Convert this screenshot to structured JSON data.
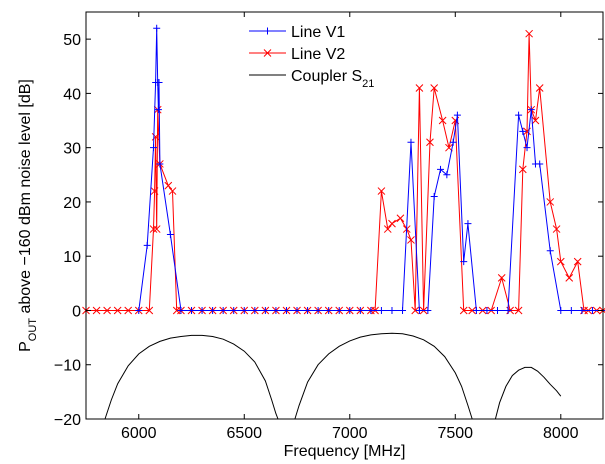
{
  "chart_data": {
    "type": "line",
    "xlabel": "Frequency [MHz]",
    "ylabel_prefix": "P",
    "ylabel_sub": "OUT",
    "ylabel_rest": " above −160 dBm noise level [dB]",
    "xlim": [
      5750,
      8200
    ],
    "ylim": [
      -20,
      55
    ],
    "xticks": [
      6000,
      6500,
      7000,
      7500,
      8000
    ],
    "yticks": [
      -20,
      -10,
      0,
      10,
      20,
      30,
      40,
      50
    ],
    "xtick_labels": [
      "6000",
      "6500",
      "7000",
      "7500",
      "8000"
    ],
    "ytick_labels": [
      "−20",
      "−10",
      "0",
      "10",
      "20",
      "30",
      "40",
      "50"
    ],
    "grid": false,
    "legend_position": "top-center",
    "series": [
      {
        "name": "Line V1",
        "color": "#0000ff",
        "marker": "plus",
        "x": [
          6000,
          6040,
          6070,
          6080,
          6085,
          6090,
          6093,
          6096,
          6100,
          6150,
          6200,
          6250,
          6300,
          6350,
          6400,
          6450,
          6500,
          6550,
          6600,
          6650,
          6700,
          6750,
          6800,
          6850,
          6900,
          6950,
          7000,
          7050,
          7100,
          7150,
          7200,
          7250,
          7290,
          7330,
          7370,
          7400,
          7430,
          7460,
          7490,
          7510,
          7540,
          7560,
          7600,
          7650,
          7700,
          7750,
          7800,
          7820,
          7840,
          7860,
          7880,
          7900,
          7950,
          8000,
          8050,
          8100,
          8150,
          8200
        ],
        "y": [
          0,
          12,
          30,
          42,
          52,
          42,
          37,
          42,
          27,
          14,
          0,
          0,
          0,
          0,
          0,
          0,
          0,
          0,
          0,
          0,
          0,
          0,
          0,
          0,
          0,
          0,
          0,
          0,
          0,
          0,
          0,
          0,
          31,
          0,
          0,
          21,
          26,
          25,
          31,
          36,
          9,
          16,
          0,
          0,
          0,
          0,
          36,
          33,
          30,
          37,
          27,
          27,
          11,
          0,
          0,
          0,
          0,
          0
        ]
      },
      {
        "name": "Line V2",
        "color": "#ff0000",
        "marker": "x",
        "x": [
          5750,
          5800,
          5850,
          5900,
          5950,
          6000,
          6050,
          6070,
          6075,
          6080,
          6085,
          6090,
          6100,
          6140,
          6160,
          6180,
          6200,
          6250,
          6300,
          6350,
          6400,
          6450,
          6500,
          6550,
          6600,
          6650,
          6700,
          6750,
          6800,
          6850,
          6900,
          6950,
          7000,
          7050,
          7100,
          7120,
          7150,
          7180,
          7200,
          7240,
          7270,
          7290,
          7310,
          7330,
          7350,
          7380,
          7400,
          7440,
          7470,
          7500,
          7540,
          7580,
          7630,
          7670,
          7720,
          7760,
          7800,
          7820,
          7840,
          7850,
          7860,
          7880,
          7900,
          7950,
          7980,
          8000,
          8040,
          8080,
          8110,
          8130,
          8170,
          8200
        ],
        "y": [
          0,
          0,
          0,
          0,
          0,
          0,
          0,
          15,
          22,
          32,
          15,
          37,
          27,
          23,
          22,
          0,
          0,
          0,
          0,
          0,
          0,
          0,
          0,
          0,
          0,
          0,
          0,
          0,
          0,
          0,
          0,
          0,
          0,
          0,
          0,
          0,
          22,
          15,
          16,
          17,
          15,
          13,
          0,
          41,
          0,
          31,
          41,
          35,
          30,
          35,
          0,
          0,
          0,
          0,
          6,
          0,
          0,
          26,
          33,
          51,
          37,
          35,
          41,
          20,
          15,
          9,
          6,
          9,
          0,
          0,
          0,
          0
        ]
      },
      {
        "name": "Coupler S",
        "name_sub": "21",
        "color": "#000000",
        "marker": "none",
        "segments": [
          {
            "x": [
              5840,
              5870,
              5900,
              5950,
              6000,
              6050,
              6100,
              6150,
              6200,
              6250,
              6300,
              6350,
              6400,
              6450,
              6500,
              6550,
              6600,
              6630,
              6650,
              6660
            ],
            "y": [
              -20,
              -16.5,
              -13.5,
              -10.2,
              -8.0,
              -6.6,
              -5.7,
              -5.1,
              -4.8,
              -4.6,
              -4.6,
              -4.8,
              -5.3,
              -6.2,
              -7.5,
              -9.5,
              -13.0,
              -16.5,
              -19.0,
              -20
            ]
          },
          {
            "x": [
              6740,
              6760,
              6800,
              6850,
              6900,
              6950,
              7000,
              7050,
              7100,
              7150,
              7200,
              7250,
              7300,
              7350,
              7400,
              7450,
              7500,
              7530,
              7560,
              7580
            ],
            "y": [
              -20,
              -17.5,
              -13.2,
              -10.0,
              -8.0,
              -6.6,
              -5.6,
              -4.9,
              -4.5,
              -4.3,
              -4.2,
              -4.3,
              -4.7,
              -5.4,
              -6.6,
              -8.5,
              -11.5,
              -14.0,
              -17.5,
              -20
            ]
          },
          {
            "x": [
              7690,
              7710,
              7740,
              7770,
              7800,
              7830,
              7860,
              7890,
              7920,
              7950,
              7980,
              8000
            ],
            "y": [
              -20,
              -17.0,
              -14.0,
              -12.0,
              -11.0,
              -10.5,
              -10.5,
              -11.2,
              -12.3,
              -13.6,
              -14.8,
              -15.8
            ]
          }
        ]
      }
    ]
  }
}
